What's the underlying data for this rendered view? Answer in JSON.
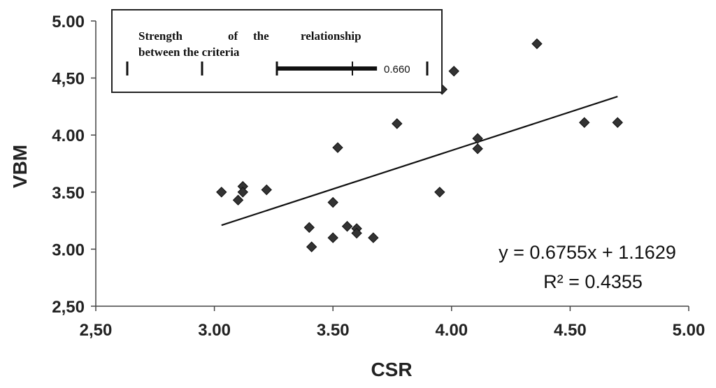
{
  "chart_data": {
    "type": "scatter",
    "xlabel": "CSR",
    "ylabel": "VBM",
    "xlim": [
      2.5,
      5.0
    ],
    "ylim": [
      2.5,
      5.0
    ],
    "x_tick_labels": [
      "2,50",
      "3.00",
      "3.50",
      "4.00",
      "4.50",
      "5.00"
    ],
    "y_tick_labels": [
      "2,50",
      "3.00",
      "3.50",
      "4.00",
      "4,50",
      "5.00"
    ],
    "grid": false,
    "points": [
      {
        "x": 3.03,
        "y": 3.5
      },
      {
        "x": 3.1,
        "y": 3.43
      },
      {
        "x": 3.12,
        "y": 3.55
      },
      {
        "x": 3.12,
        "y": 3.5
      },
      {
        "x": 3.22,
        "y": 3.52
      },
      {
        "x": 3.4,
        "y": 3.19
      },
      {
        "x": 3.41,
        "y": 3.02
      },
      {
        "x": 3.5,
        "y": 3.41
      },
      {
        "x": 3.5,
        "y": 3.1
      },
      {
        "x": 3.52,
        "y": 3.89
      },
      {
        "x": 3.56,
        "y": 3.2
      },
      {
        "x": 3.6,
        "y": 3.18
      },
      {
        "x": 3.6,
        "y": 3.14
      },
      {
        "x": 3.67,
        "y": 3.1
      },
      {
        "x": 3.77,
        "y": 4.1
      },
      {
        "x": 3.95,
        "y": 3.5
      },
      {
        "x": 3.96,
        "y": 4.4
      },
      {
        "x": 4.01,
        "y": 4.56
      },
      {
        "x": 4.11,
        "y": 3.97
      },
      {
        "x": 4.11,
        "y": 3.88
      },
      {
        "x": 4.36,
        "y": 4.8
      },
      {
        "x": 4.56,
        "y": 4.11
      },
      {
        "x": 4.7,
        "y": 4.11
      }
    ],
    "trendline": {
      "slope": 0.6755,
      "intercept": 1.1629,
      "x_range": [
        3.03,
        4.7
      ]
    },
    "equation_text": "y = 0.6755x + 1.1629",
    "r2_text": "R² = 0.4355",
    "legend": {
      "placement": "top-left",
      "line1": [
        "Strength",
        "of",
        "the",
        "relationship"
      ],
      "line2": "between the criteria",
      "value_text": "0.660",
      "value_fraction": 0.66
    }
  }
}
